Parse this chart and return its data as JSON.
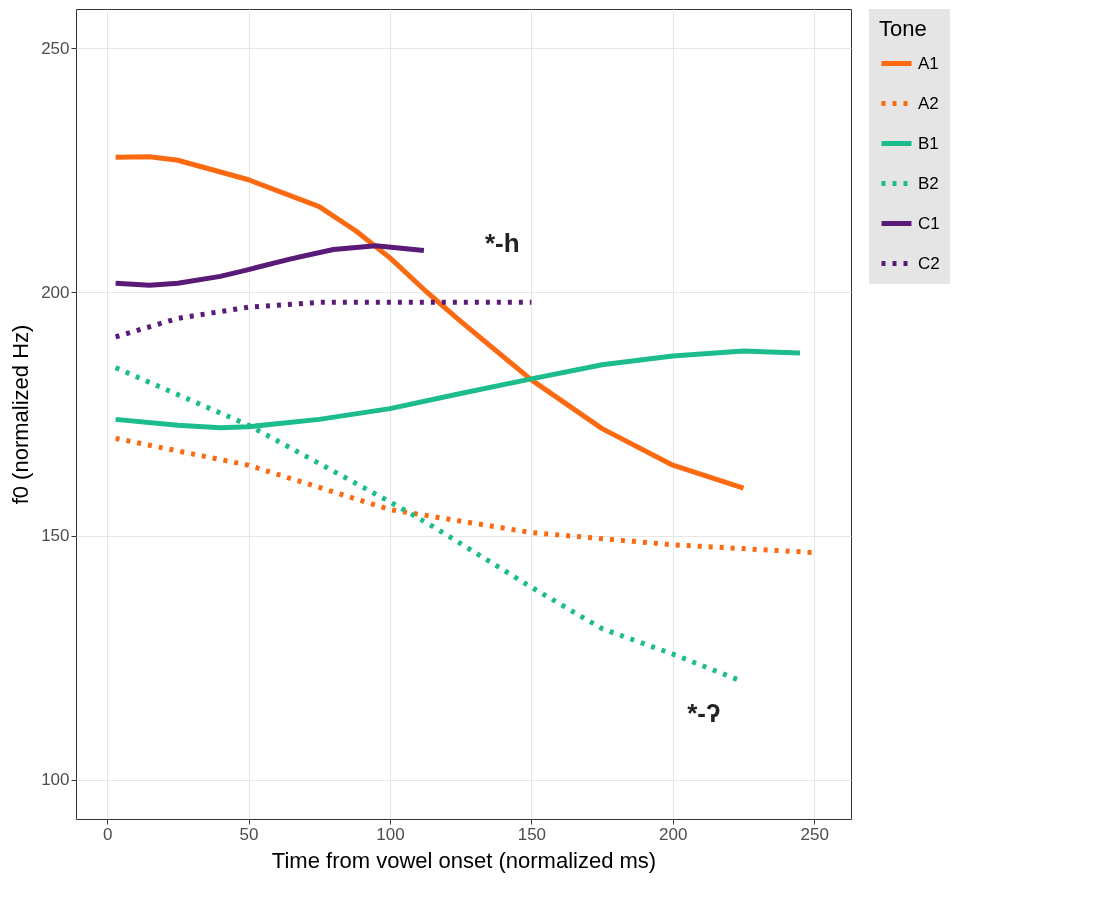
{
  "chart_data": {
    "type": "line",
    "xlabel": "Time from vowel onset (normalized ms)",
    "ylabel": "f0 (normalized Hz)",
    "legend_title": "Tone",
    "xlim": [
      -11,
      263
    ],
    "ylim": [
      92,
      258
    ],
    "xticks": [
      0,
      50,
      100,
      150,
      200,
      250
    ],
    "yticks": [
      100,
      150,
      200,
      250
    ],
    "grid": true,
    "legend": "right",
    "series": [
      {
        "name": "A1",
        "color": "#fb6a11",
        "line_style": "solid",
        "x": [
          3,
          15,
          25,
          50,
          75,
          88,
          100,
          113,
          125,
          150,
          175,
          200,
          225
        ],
        "values": [
          227.6,
          227.7,
          227,
          223,
          217.5,
          212.5,
          207,
          200,
          194,
          182,
          172,
          164.5,
          159.8
        ]
      },
      {
        "name": "A2",
        "color": "#fb6a11",
        "line_style": "dotted",
        "x": [
          3,
          50,
          100,
          150,
          200,
          250
        ],
        "values": [
          170,
          164.5,
          155.4,
          150.7,
          148.2,
          146.6
        ]
      },
      {
        "name": "B1",
        "color": "#1cbc8c",
        "line_style": "solid",
        "x": [
          3,
          25,
          40,
          50,
          75,
          100,
          125,
          150,
          175,
          200,
          225,
          245
        ],
        "values": [
          173.9,
          172.7,
          172.2,
          172.4,
          173.9,
          176.1,
          179.2,
          182.2,
          185.1,
          186.9,
          187.9,
          187.5
        ]
      },
      {
        "name": "B2",
        "color": "#1cbc8c",
        "line_style": "dotted",
        "x": [
          3,
          50,
          100,
          115,
          150,
          175,
          200,
          225
        ],
        "values": [
          184.5,
          172.7,
          157,
          152,
          139.5,
          131,
          125.8,
          120.1
        ]
      },
      {
        "name": "C1",
        "color": "#5a1a78",
        "line_style": "solid",
        "x": [
          3,
          15,
          25,
          40,
          50,
          65,
          80,
          95,
          112
        ],
        "values": [
          201.8,
          201.4,
          201.8,
          203.2,
          204.6,
          206.8,
          208.7,
          209.5,
          208.5
        ]
      },
      {
        "name": "C2",
        "color": "#5a1a78",
        "line_style": "dotted",
        "x": [
          3,
          25,
          50,
          75,
          100,
          150
        ],
        "values": [
          190.8,
          194.6,
          196.9,
          197.9,
          197.9,
          197.9
        ]
      }
    ],
    "annotations": [
      "*-h",
      "*-ʔ"
    ]
  }
}
